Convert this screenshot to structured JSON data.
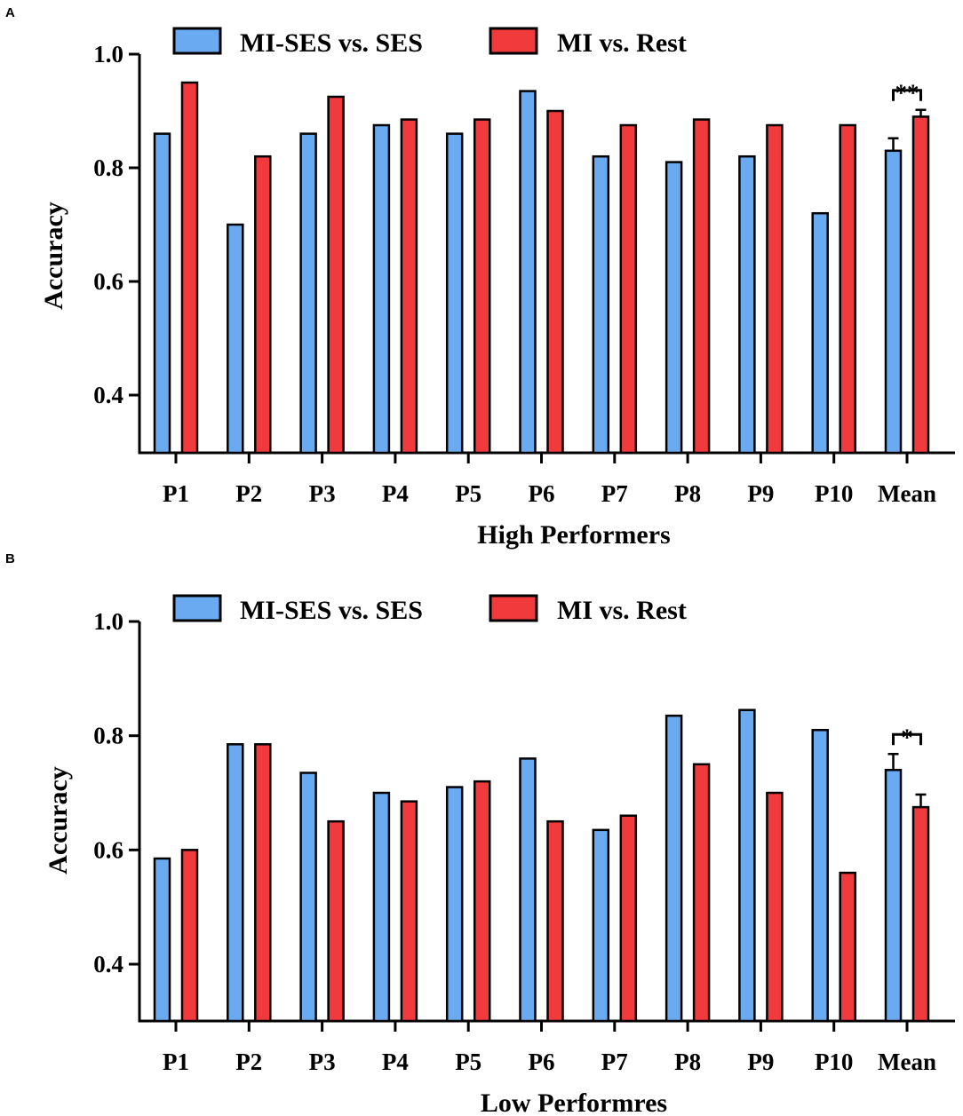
{
  "colors": {
    "series_a": "#6aaaf0",
    "series_b": "#f03a3c",
    "stroke": "#000000"
  },
  "chart_data": [
    {
      "panel": "A",
      "type": "bar",
      "categories": [
        "P1",
        "P2",
        "P3",
        "P4",
        "P5",
        "P6",
        "P7",
        "P8",
        "P9",
        "P10",
        "Mean"
      ],
      "series": [
        {
          "name": "MI-SES vs. SES",
          "values": [
            0.86,
            0.7,
            0.86,
            0.875,
            0.86,
            0.935,
            0.82,
            0.81,
            0.82,
            0.72,
            0.83
          ],
          "errors": [
            null,
            null,
            null,
            null,
            null,
            null,
            null,
            null,
            null,
            null,
            0.022
          ]
        },
        {
          "name": "MI vs. Rest",
          "values": [
            0.95,
            0.82,
            0.925,
            0.885,
            0.885,
            0.9,
            0.875,
            0.885,
            0.875,
            0.875,
            0.89
          ],
          "errors": [
            null,
            null,
            null,
            null,
            null,
            null,
            null,
            null,
            null,
            null,
            0.012
          ]
        }
      ],
      "xlabel": "High Performers",
      "ylabel": "Accuracy",
      "ylim": [
        0.3,
        1.0
      ],
      "yticks": [
        "1.0",
        "0.8",
        "0.6",
        "0.4"
      ],
      "ytick_values": [
        1.0,
        0.8,
        0.6,
        0.4
      ],
      "significance": {
        "category": "Mean",
        "label": "**"
      },
      "legend_position": "top"
    },
    {
      "panel": "B",
      "type": "bar",
      "categories": [
        "P1",
        "P2",
        "P3",
        "P4",
        "P5",
        "P6",
        "P7",
        "P8",
        "P9",
        "P10",
        "Mean"
      ],
      "series": [
        {
          "name": "MI-SES vs. SES",
          "values": [
            0.585,
            0.785,
            0.735,
            0.7,
            0.71,
            0.76,
            0.635,
            0.835,
            0.845,
            0.81,
            0.74
          ],
          "errors": [
            null,
            null,
            null,
            null,
            null,
            null,
            null,
            null,
            null,
            null,
            0.028
          ]
        },
        {
          "name": "MI vs. Rest",
          "values": [
            0.6,
            0.785,
            0.65,
            0.685,
            0.72,
            0.65,
            0.66,
            0.75,
            0.7,
            0.56,
            0.675
          ],
          "errors": [
            null,
            null,
            null,
            null,
            null,
            null,
            null,
            null,
            null,
            null,
            0.022
          ]
        }
      ],
      "xlabel": "Low Performres",
      "ylabel": "Accuracy",
      "ylim": [
        0.3,
        1.0
      ],
      "yticks": [
        "1.0",
        "0.8",
        "0.6",
        "0.4"
      ],
      "ytick_values": [
        1.0,
        0.8,
        0.6,
        0.4
      ],
      "significance": {
        "category": "Mean",
        "label": "*"
      },
      "legend_position": "top"
    }
  ]
}
